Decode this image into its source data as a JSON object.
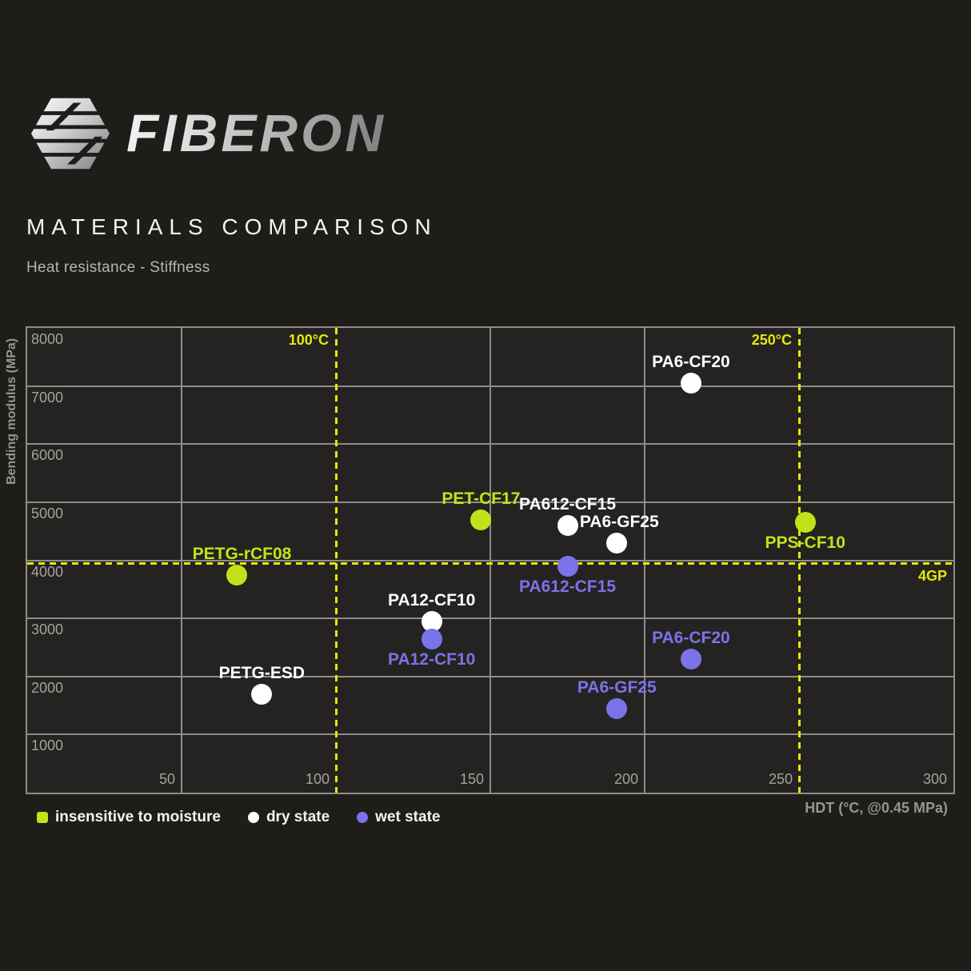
{
  "brand": {
    "wordmark": "FIBERON",
    "icon": "fiberon-hex-icon"
  },
  "header": {
    "title": "MATERIALS COMPARISON",
    "subtitle": "Heat resistance - Stiffness"
  },
  "chart_data": {
    "type": "scatter",
    "title": "Heat resistance - Stiffness",
    "xlabel": "HDT (°C, @0.45 MPa)",
    "ylabel": "Bending modulus (MPa)",
    "xlim": [
      0,
      300
    ],
    "ylim": [
      0,
      8000
    ],
    "x_ticks": [
      50,
      100,
      150,
      200,
      250,
      300
    ],
    "y_ticks": [
      1000,
      2000,
      3000,
      4000,
      5000,
      6000,
      7000,
      8000
    ],
    "grid": true,
    "legend_position": "bottom-left",
    "reference_lines": {
      "vertical": [
        {
          "x": 100,
          "label": "100°C"
        },
        {
          "x": 250,
          "label": "250°C"
        }
      ],
      "horizontal": [
        {
          "y": 4000,
          "label": "4GP"
        }
      ]
    },
    "series": [
      {
        "name": "insensitive to moisture",
        "color": "#c3e118",
        "marker": "circle",
        "points": [
          {
            "label": "PETG-rCF08",
            "x": 68,
            "y": 3750,
            "label_pos": "above",
            "dx": 6
          },
          {
            "label": "PET-CF17",
            "x": 147,
            "y": 4700,
            "label_pos": "above"
          },
          {
            "label": "PPS-CF10",
            "x": 252,
            "y": 4650,
            "label_pos": "below"
          }
        ]
      },
      {
        "name": "dry state",
        "color": "#ffffff",
        "marker": "circle",
        "points": [
          {
            "label": "PETG-ESD",
            "x": 76,
            "y": 1700,
            "label_pos": "above"
          },
          {
            "label": "PA12-CF10",
            "x": 131,
            "y": 2950,
            "label_pos": "above"
          },
          {
            "label": "PA612-CF15",
            "x": 175,
            "y": 4600,
            "label_pos": "above"
          },
          {
            "label": "PA6-GF25",
            "x": 191,
            "y": 4300,
            "label_pos": "above",
            "dx": 3
          },
          {
            "label": "PA6-CF20",
            "x": 215,
            "y": 7050,
            "label_pos": "above"
          }
        ]
      },
      {
        "name": "wet state",
        "color": "#7b73e8",
        "marker": "circle",
        "points": [
          {
            "label": "PA12-CF10",
            "x": 131,
            "y": 2650,
            "label_pos": "below"
          },
          {
            "label": "PA612-CF15",
            "x": 175,
            "y": 3900,
            "label_pos": "below"
          },
          {
            "label": "PA6-GF25",
            "x": 191,
            "y": 1450,
            "label_pos": "above"
          },
          {
            "label": "PA6-CF20",
            "x": 215,
            "y": 2300,
            "label_pos": "above"
          }
        ]
      }
    ]
  },
  "legend": {
    "items": [
      {
        "label": "insensitive to moisture",
        "color": "#c3e118",
        "shape": "square"
      },
      {
        "label": "dry state",
        "color": "#ffffff",
        "shape": "circle"
      },
      {
        "label": "wet state",
        "color": "#7b73e8",
        "shape": "circle"
      }
    ]
  },
  "colors": {
    "background": "#1e1d1a",
    "plot_background": "#242321",
    "grid": "#8d8d89",
    "accent_green": "#c3e118",
    "accent_yellow": "#e4e70a",
    "accent_purple": "#7b73e8",
    "text_muted": "#a3a29c"
  }
}
